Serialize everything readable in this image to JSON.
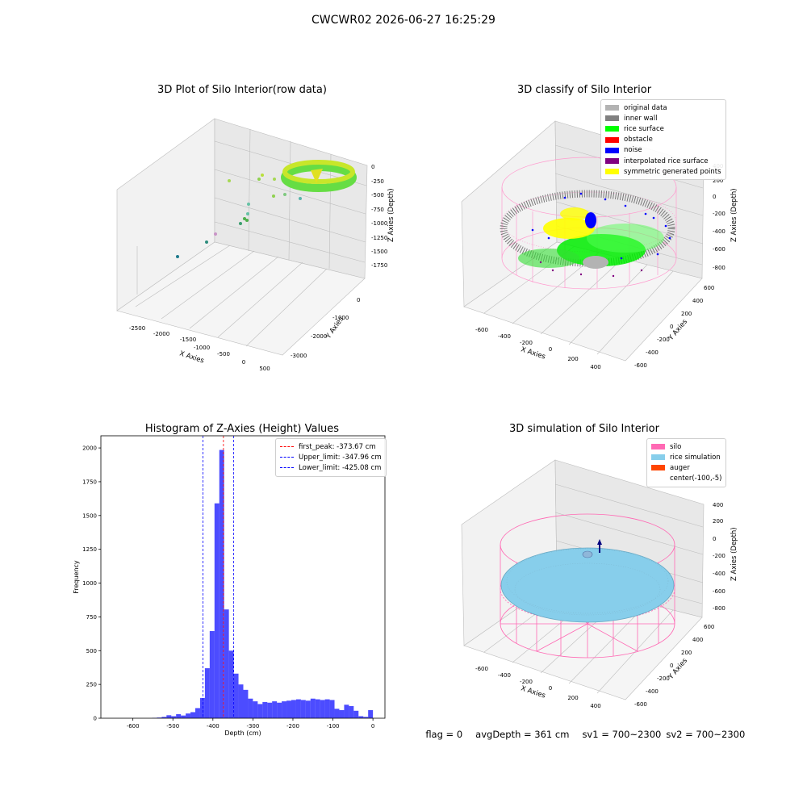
{
  "suptitle": "CWCWR02 2026-06-27 16:25:29",
  "status": {
    "flag": "flag = 0",
    "avg_depth": "avgDepth = 361 cm",
    "sv1": "sv1 = 700~2300",
    "sv2": "sv2 = 700~2300"
  },
  "panel_raw": {
    "title": "3D Plot of Silo Interior(row data)",
    "xlabel": "X Axies",
    "ylabel": "Y Axies",
    "zlabel": "Z Axies (Depth)",
    "x_ticks": [
      "-2500",
      "-2000",
      "-1500",
      "-1000",
      "-500",
      "0",
      "500"
    ],
    "y_ticks": [
      "0",
      "-1000",
      "-2000",
      "-3000"
    ],
    "z_ticks": [
      "0",
      "-250",
      "-500",
      "-750",
      "-1000",
      "-1250",
      "-1500",
      "-1750"
    ]
  },
  "panel_classify": {
    "title": "3D classify of Silo Interior",
    "xlabel": "X Axies",
    "ylabel": "Y Axies",
    "zlabel": "Z Axies (Depth)",
    "x_ticks": [
      "-600",
      "-400",
      "-200",
      "0",
      "200",
      "400"
    ],
    "y_ticks": [
      "600",
      "400",
      "200",
      "0",
      "-200",
      "-400",
      "-600"
    ],
    "z_ticks": [
      "400",
      "200",
      "0",
      "-200",
      "-400",
      "-600",
      "-800"
    ],
    "legend": [
      {
        "label": "original data",
        "color": "#b3b3b3"
      },
      {
        "label": "inner wall",
        "color": "#808080"
      },
      {
        "label": "rice surface",
        "color": "#00ff00"
      },
      {
        "label": "obstacle",
        "color": "#ff0000"
      },
      {
        "label": "noise",
        "color": "#0000ff"
      },
      {
        "label": "interpolated rice surface",
        "color": "#800080"
      },
      {
        "label": "symmetric generated points",
        "color": "#ffff00"
      }
    ]
  },
  "panel_sim": {
    "title": "3D simulation of Silo Interior",
    "xlabel": "X Axies",
    "ylabel": "Y Axies",
    "zlabel": "Z Axies (Depth)",
    "x_ticks": [
      "-600",
      "-400",
      "-200",
      "0",
      "200",
      "400"
    ],
    "y_ticks": [
      "600",
      "400",
      "200",
      "0",
      "-200",
      "-400",
      "-600"
    ],
    "z_ticks": [
      "400",
      "200",
      "0",
      "-200",
      "-400",
      "-600",
      "-800"
    ],
    "legend": [
      {
        "label": "silo",
        "color": "#ff69b4"
      },
      {
        "label": "rice simulation",
        "color": "#87ceeb"
      },
      {
        "label": "auger",
        "color": "#ff4500"
      },
      {
        "label": "center(-100,-5)",
        "color": ""
      }
    ]
  },
  "chart_data": [
    {
      "type": "histogram",
      "title": "Histogram of Z-Axies (Height) Values",
      "xlabel": "Depth (cm)",
      "ylabel": "Frequency",
      "xlim": [
        -680,
        30
      ],
      "ylim": [
        0,
        2090
      ],
      "x_ticks": [
        -600,
        -500,
        -400,
        -300,
        -200,
        -100,
        0
      ],
      "y_ticks": [
        0,
        250,
        500,
        750,
        1000,
        1250,
        1500,
        1750,
        2000
      ],
      "bar_color": "#0000ff",
      "bin_width": 12,
      "bins": [
        {
          "x": -546,
          "y": 3
        },
        {
          "x": -534,
          "y": 5
        },
        {
          "x": -522,
          "y": 10
        },
        {
          "x": -510,
          "y": 22
        },
        {
          "x": -498,
          "y": 15
        },
        {
          "x": -486,
          "y": 30
        },
        {
          "x": -474,
          "y": 20
        },
        {
          "x": -462,
          "y": 35
        },
        {
          "x": -450,
          "y": 45
        },
        {
          "x": -438,
          "y": 75
        },
        {
          "x": -426,
          "y": 150
        },
        {
          "x": -414,
          "y": 370
        },
        {
          "x": -402,
          "y": 645
        },
        {
          "x": -390,
          "y": 1590
        },
        {
          "x": -378,
          "y": 1985
        },
        {
          "x": -366,
          "y": 805
        },
        {
          "x": -354,
          "y": 500
        },
        {
          "x": -342,
          "y": 330
        },
        {
          "x": -330,
          "y": 250
        },
        {
          "x": -318,
          "y": 210
        },
        {
          "x": -306,
          "y": 145
        },
        {
          "x": -294,
          "y": 125
        },
        {
          "x": -282,
          "y": 105
        },
        {
          "x": -270,
          "y": 120
        },
        {
          "x": -258,
          "y": 115
        },
        {
          "x": -246,
          "y": 125
        },
        {
          "x": -234,
          "y": 115
        },
        {
          "x": -222,
          "y": 125
        },
        {
          "x": -210,
          "y": 130
        },
        {
          "x": -198,
          "y": 135
        },
        {
          "x": -186,
          "y": 140
        },
        {
          "x": -174,
          "y": 135
        },
        {
          "x": -162,
          "y": 130
        },
        {
          "x": -150,
          "y": 145
        },
        {
          "x": -138,
          "y": 140
        },
        {
          "x": -126,
          "y": 135
        },
        {
          "x": -114,
          "y": 140
        },
        {
          "x": -102,
          "y": 135
        },
        {
          "x": -90,
          "y": 70
        },
        {
          "x": -78,
          "y": 60
        },
        {
          "x": -66,
          "y": 100
        },
        {
          "x": -54,
          "y": 90
        },
        {
          "x": -42,
          "y": 55
        },
        {
          "x": -30,
          "y": 15
        },
        {
          "x": -18,
          "y": 10
        },
        {
          "x": -6,
          "y": 60
        }
      ],
      "lines": [
        {
          "label": "first_peak: -373.67 cm",
          "value": -373.67,
          "color": "#ff0000"
        },
        {
          "label": "Upper_limit: -347.96 cm",
          "value": -347.96,
          "color": "#0000ff"
        },
        {
          "label": "Lower_limit: -425.08 cm",
          "value": -425.08,
          "color": "#0000ff"
        }
      ],
      "legend_position": "upper right"
    }
  ]
}
